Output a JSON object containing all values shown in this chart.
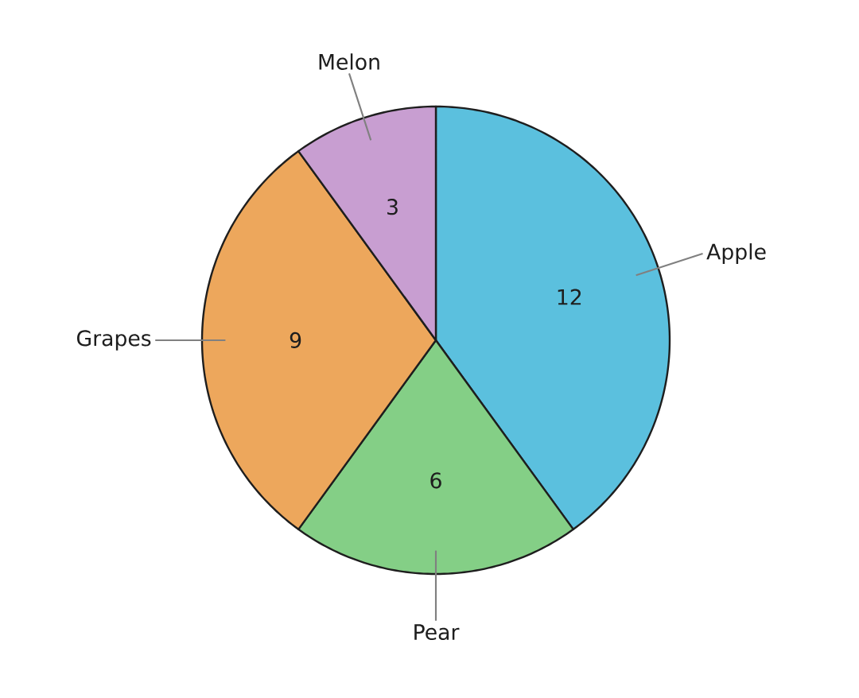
{
  "chart_data": {
    "type": "pie",
    "categories": [
      "Apple",
      "Pear",
      "Grapes",
      "Melon"
    ],
    "values": [
      12,
      6,
      9,
      3
    ],
    "colors": [
      "#5bc0de",
      "#84cf86",
      "#eda75c",
      "#c89ed1"
    ],
    "data_labels": true
  }
}
